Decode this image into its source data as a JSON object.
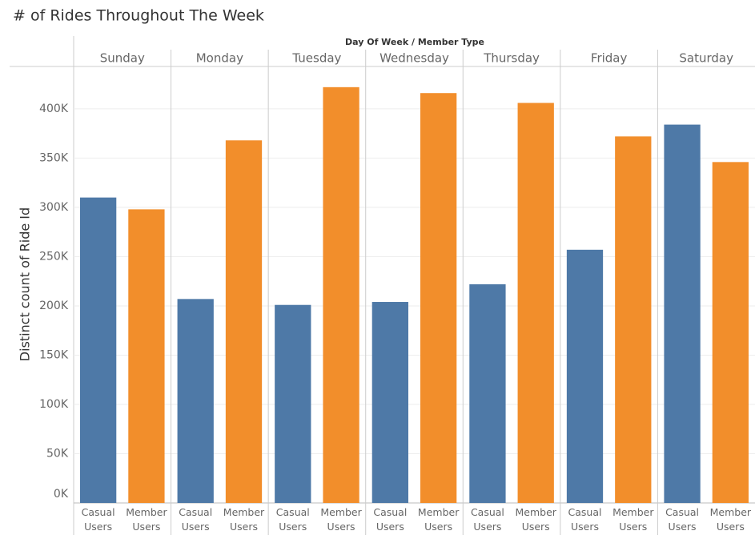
{
  "chart_data": {
    "type": "bar",
    "title": "# of Rides Throughout The Week",
    "x_label": "Day Of Week / Member Type",
    "y_label": "Distinct count of Ride Id",
    "categories": [
      "Sunday",
      "Monday",
      "Tuesday",
      "Wednesday",
      "Thursday",
      "Friday",
      "Saturday"
    ],
    "series": [
      {
        "name": "Casual Users",
        "color": "#4e79a7",
        "values": [
          310000,
          207000,
          201000,
          204000,
          222000,
          257000,
          384000
        ]
      },
      {
        "name": "Member Users",
        "color": "#f28e2b",
        "values": [
          298000,
          368000,
          422000,
          416000,
          406000,
          372000,
          346000
        ]
      }
    ],
    "ylim": [
      0,
      443000
    ],
    "yticks": [
      {
        "value": 0,
        "label": "0K"
      },
      {
        "value": 50000,
        "label": "50K"
      },
      {
        "value": 100000,
        "label": "100K"
      },
      {
        "value": 150000,
        "label": "150K"
      },
      {
        "value": 200000,
        "label": "200K"
      },
      {
        "value": 250000,
        "label": "250K"
      },
      {
        "value": 300000,
        "label": "300K"
      },
      {
        "value": 350000,
        "label": "350K"
      },
      {
        "value": 400000,
        "label": "400K"
      }
    ],
    "grid": true
  }
}
